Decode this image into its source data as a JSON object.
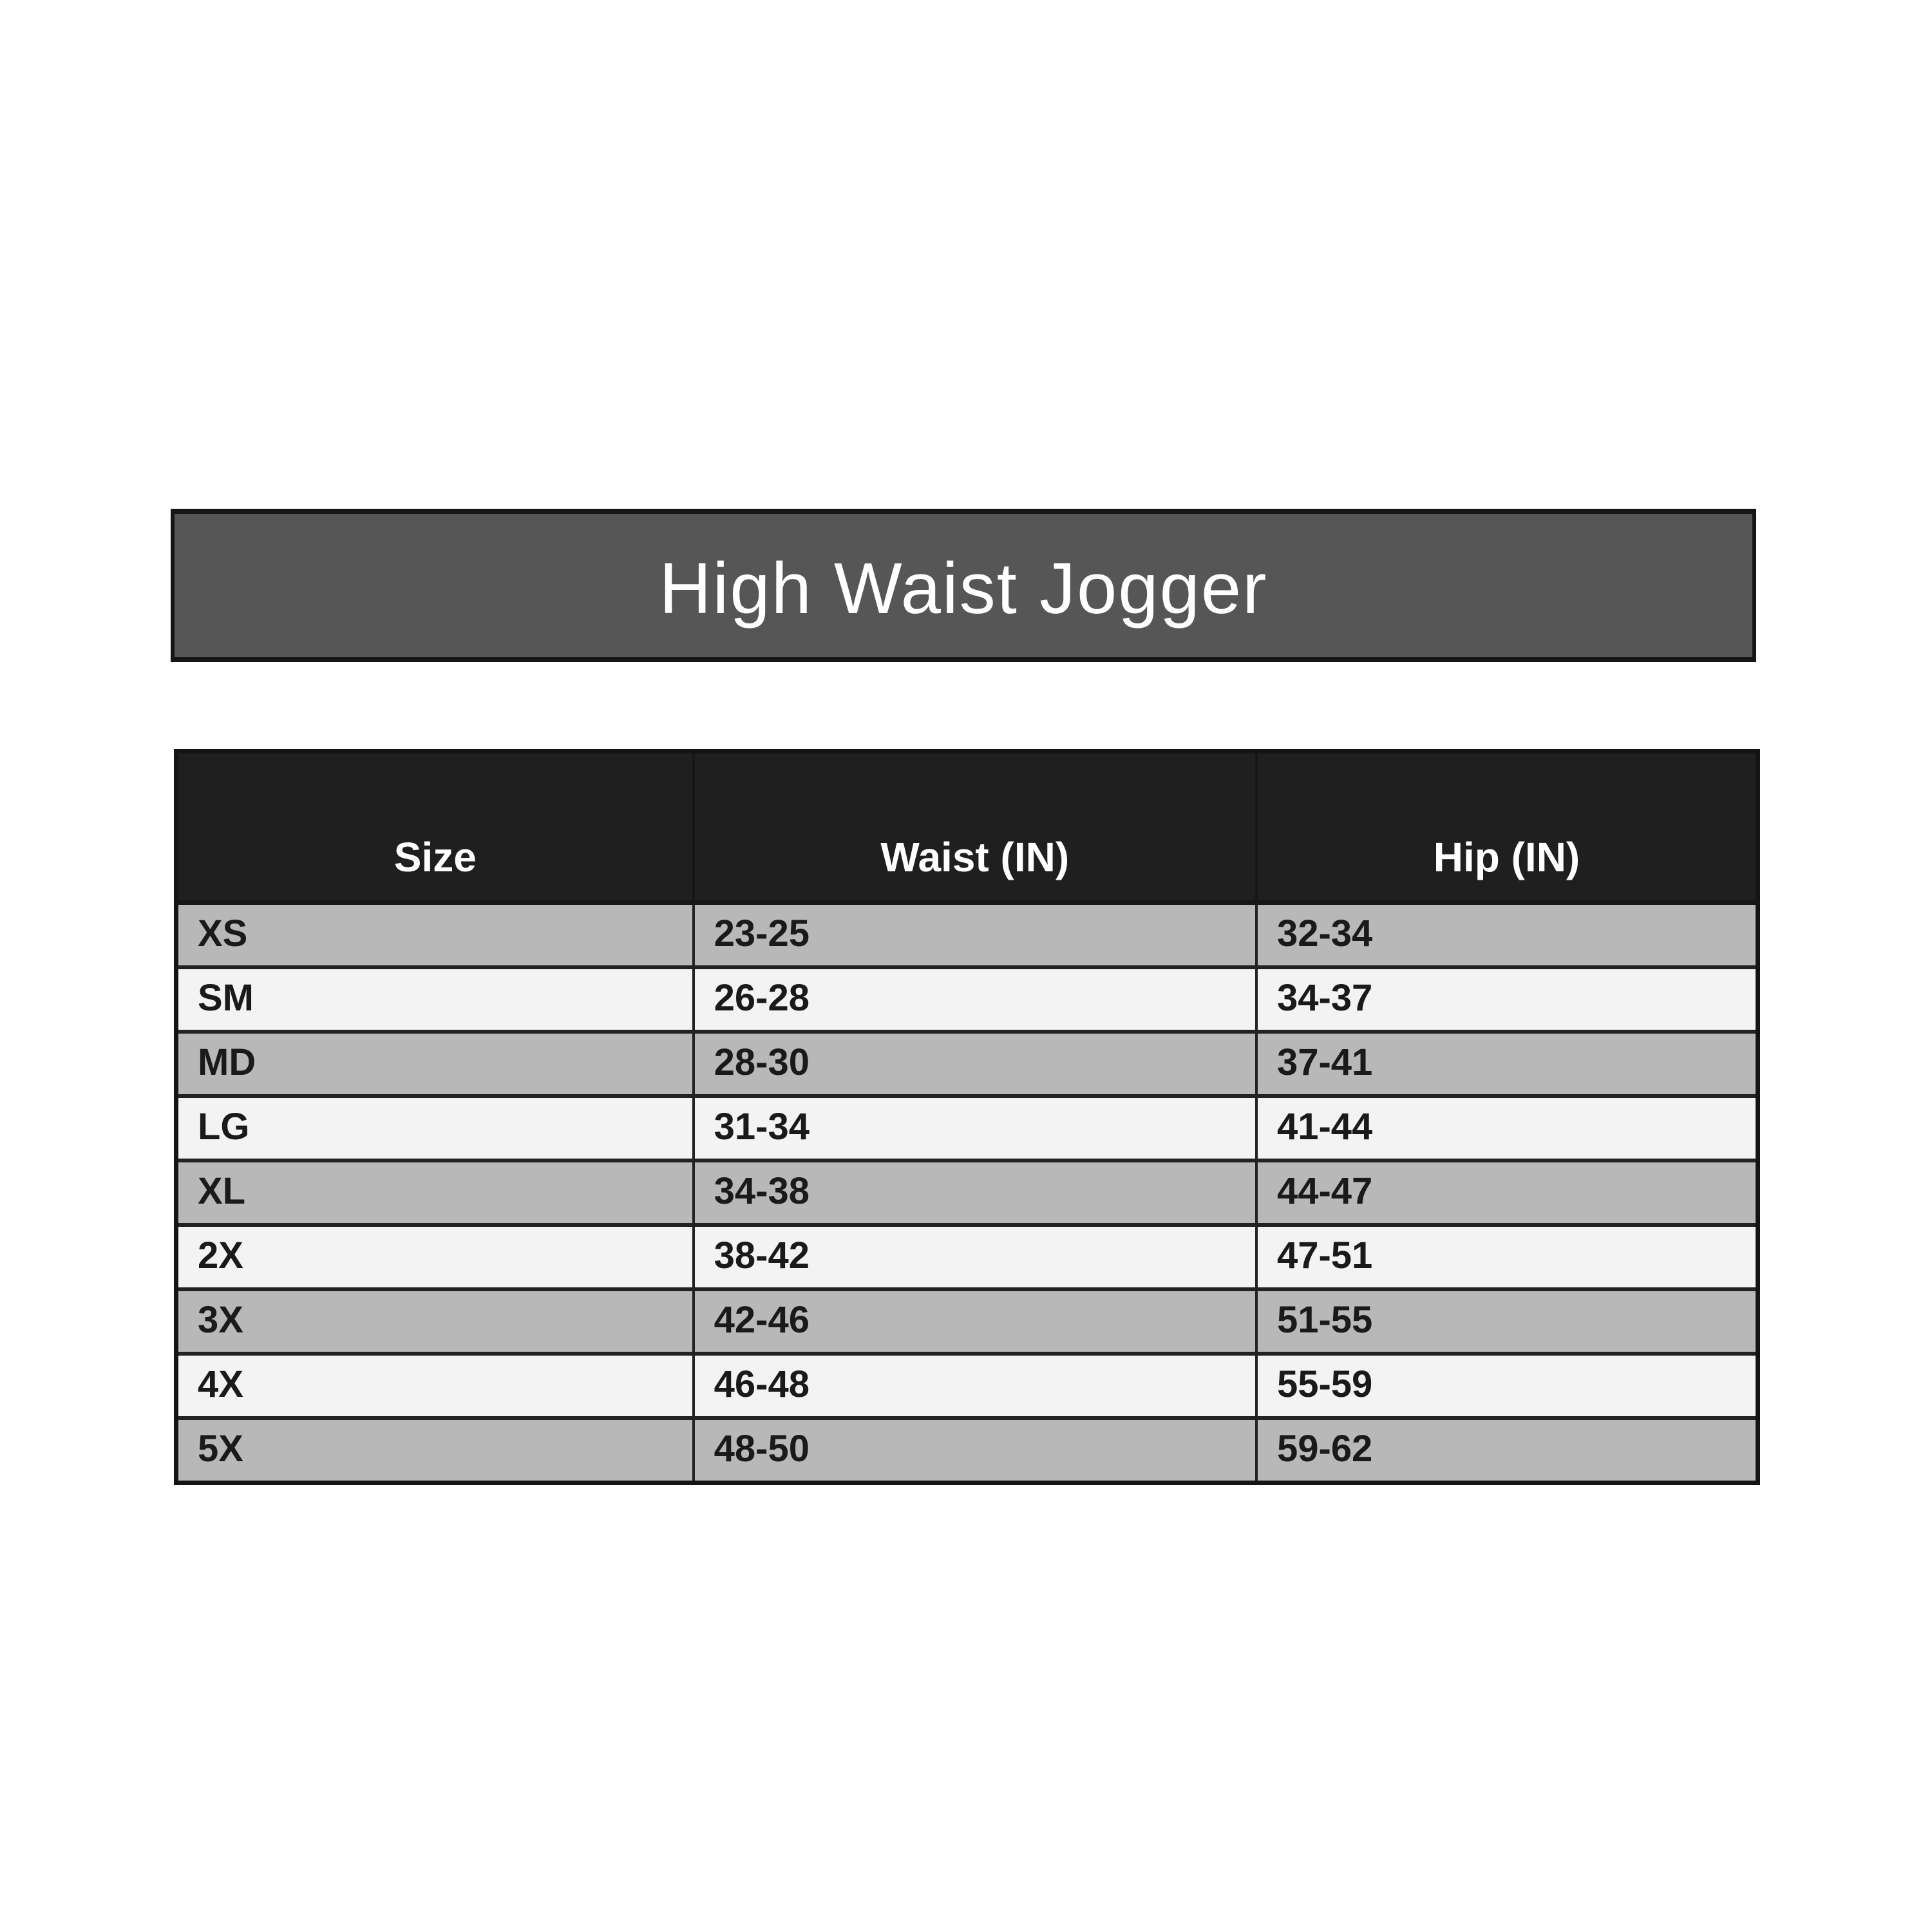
{
  "title_banner": {
    "text": "High Waist Jogger",
    "bg_color": "#565656",
    "text_color": "#ffffff",
    "border_color": "#161616"
  },
  "size_chart": {
    "columns": [
      "Size",
      "Waist (IN)",
      "Hip (IN)"
    ],
    "rows": [
      {
        "size": "XS",
        "waist": "23-25",
        "hip": "32-34"
      },
      {
        "size": "SM",
        "waist": "26-28",
        "hip": "34-37"
      },
      {
        "size": "MD",
        "waist": "28-30",
        "hip": "37-41"
      },
      {
        "size": "LG",
        "waist": "31-34",
        "hip": "41-44"
      },
      {
        "size": "XL",
        "waist": "34-38",
        "hip": "44-47"
      },
      {
        "size": "2X",
        "waist": "38-42",
        "hip": "47-51"
      },
      {
        "size": "3X",
        "waist": "42-46",
        "hip": "51-55"
      },
      {
        "size": "4X",
        "waist": "46-48",
        "hip": "55-59"
      },
      {
        "size": "5X",
        "waist": "48-50",
        "hip": "59-62"
      }
    ],
    "header_bg": "#1f1f1f",
    "header_text_color": "#ffffff",
    "row_stripe_colors": [
      "#b8b8b8",
      "#f3f3f3"
    ],
    "body_text_color": "#1a1a1a"
  }
}
